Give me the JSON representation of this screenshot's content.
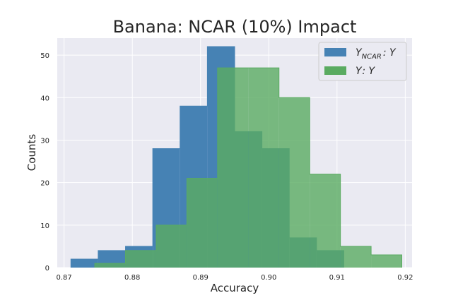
{
  "chart_data": {
    "type": "bar",
    "title": "Banana: NCAR (10%) Impact",
    "xlabel": "Accuracy",
    "ylabel": "Counts",
    "xlim": [
      0.869,
      0.921
    ],
    "ylim": [
      0,
      54
    ],
    "xticks": [
      "0.87",
      "0.88",
      "0.89",
      "0.90",
      "0.91",
      "0.92"
    ],
    "yticks": [
      "0",
      "10",
      "20",
      "30",
      "40",
      "50"
    ],
    "grid": true,
    "legend_placement": "top-right",
    "series": [
      {
        "name_base": "Y",
        "name_sub": "NCAR",
        "name_rest": ": Y",
        "color": "#4682b4",
        "bins": [
          0.871,
          0.875,
          0.879,
          0.883,
          0.887,
          0.891,
          0.895,
          0.899,
          0.903,
          0.907,
          0.911
        ],
        "counts": [
          2,
          4,
          5,
          28,
          38,
          52,
          32,
          28,
          7,
          4
        ]
      },
      {
        "name_base": "Y",
        "name_sub": "",
        "name_rest": ": Y",
        "color": "#5aab61",
        "bins": [
          0.8745,
          0.879,
          0.8835,
          0.888,
          0.8925,
          0.897,
          0.9015,
          0.906,
          0.9105,
          0.915,
          0.9195
        ],
        "counts": [
          1,
          4,
          10,
          21,
          47,
          47,
          40,
          22,
          5,
          3
        ]
      }
    ]
  }
}
